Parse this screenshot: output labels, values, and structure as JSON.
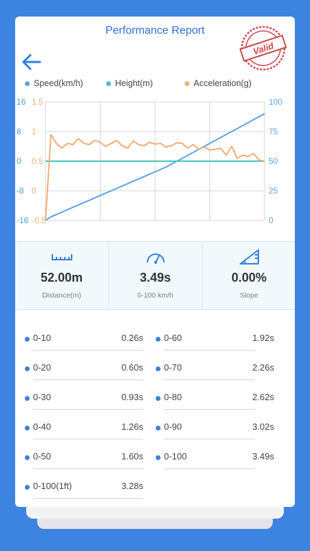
{
  "header": {
    "title": "Performance Report",
    "stamp_text": "Valid"
  },
  "legend": [
    {
      "label": "Speed(km/h)",
      "color": "#5aa3e6"
    },
    {
      "label": "Height(m)",
      "color": "#45c4c4"
    },
    {
      "label": "Acceleration(g)",
      "color": "#f2ac76"
    }
  ],
  "chart_data": {
    "type": "line",
    "x": [
      0,
      1,
      2,
      3,
      4,
      5,
      6,
      7,
      8,
      9,
      10,
      11,
      12,
      13,
      14,
      15,
      16,
      17,
      18,
      19,
      20,
      21,
      22,
      23,
      24,
      25,
      26,
      27,
      28,
      29,
      30,
      31,
      32,
      33,
      34,
      35,
      36,
      37,
      38,
      39,
      40
    ],
    "series": [
      {
        "name": "Speed(km/h)",
        "axis": "right",
        "color": "#5aa3e6",
        "values": [
          0,
          3,
          5,
          7,
          9,
          11,
          13,
          15,
          17,
          19,
          21,
          23,
          25,
          27,
          29,
          31,
          33,
          35,
          37,
          39,
          41,
          43,
          45,
          47.5,
          50,
          52.5,
          55,
          57.5,
          60,
          62.5,
          65,
          67.5,
          70,
          72.5,
          75,
          77.5,
          80,
          82.5,
          85,
          87.5,
          90
        ]
      },
      {
        "name": "Height(m)",
        "axis": "left_height",
        "color": "#45c4c4",
        "values": [
          0,
          0,
          0,
          0,
          0,
          0,
          0,
          0,
          0,
          0,
          0,
          0,
          0,
          0,
          0,
          0,
          0,
          0,
          0,
          0,
          0,
          0,
          0,
          0,
          0,
          0,
          0,
          0,
          0,
          0,
          0,
          0,
          0,
          0,
          0,
          0,
          0,
          0,
          0,
          0,
          0
        ]
      },
      {
        "name": "Acceleration(g)",
        "axis": "left_accel",
        "color": "#f2ac76",
        "values": [
          -0.5,
          0.95,
          0.8,
          0.72,
          0.8,
          0.78,
          0.88,
          0.8,
          0.78,
          0.85,
          0.82,
          0.75,
          0.8,
          0.85,
          0.76,
          0.72,
          0.84,
          0.78,
          0.76,
          0.82,
          0.79,
          0.8,
          0.74,
          0.76,
          0.81,
          0.8,
          0.72,
          0.78,
          0.7,
          0.74,
          0.69,
          0.7,
          0.72,
          0.6,
          0.75,
          0.55,
          0.6,
          0.58,
          0.63,
          0.52,
          0.5
        ]
      }
    ],
    "axes": {
      "left_height": {
        "ticks": [
          "16",
          "8",
          "0",
          "-8",
          "-16"
        ],
        "range": [
          -16,
          16
        ],
        "color": "#4aa0d5"
      },
      "left_accel": {
        "ticks": [
          "1.5",
          "1",
          "0.5",
          "0",
          "-0.5"
        ],
        "range": [
          -0.5,
          1.5
        ],
        "color": "#f2ac76"
      },
      "right": {
        "ticks": [
          "100",
          "75",
          "50",
          "25",
          "0"
        ],
        "range": [
          0,
          100
        ],
        "color": "#5aa3e6"
      }
    },
    "grid": true,
    "legend_position": "top"
  },
  "stats": [
    {
      "icon": "ruler-icon",
      "value": "52.00m",
      "label": "Distance(m)"
    },
    {
      "icon": "speedometer-icon",
      "value": "3.49s",
      "label": "0-100 km/h"
    },
    {
      "icon": "slope-icon",
      "value": "0.00%",
      "label": "Slope"
    }
  ],
  "intervals_left": [
    {
      "label": "0-10",
      "time": "0.26s"
    },
    {
      "label": "0-20",
      "time": "0.60s"
    },
    {
      "label": "0-30",
      "time": "0.93s"
    },
    {
      "label": "0-40",
      "time": "1.26s"
    },
    {
      "label": "0-50",
      "time": "1.60s"
    },
    {
      "label": "0-100(1ft)",
      "time": "3.28s"
    }
  ],
  "intervals_right": [
    {
      "label": "0-60",
      "time": "1.92s"
    },
    {
      "label": "0-70",
      "time": "2.26s"
    },
    {
      "label": "0-80",
      "time": "2.62s"
    },
    {
      "label": "0-90",
      "time": "3.02s"
    },
    {
      "label": "0-100",
      "time": "3.49s"
    }
  ]
}
